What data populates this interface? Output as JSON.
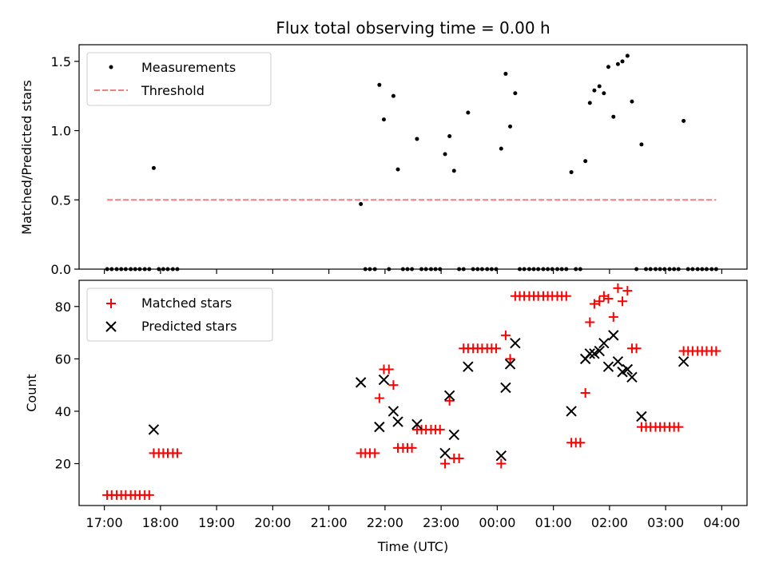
{
  "chart_data": [
    {
      "type": "scatter",
      "panel": "top",
      "title": "Flux total observing time = 0.00 h",
      "xlabel": "",
      "ylabel": "Matched/Predicted stars",
      "ylim": [
        0,
        1.62
      ],
      "yticks": [
        0.0,
        0.5,
        1.0,
        1.5
      ],
      "ytick_labels": [
        "0.0",
        "0.5",
        "1.0",
        "1.5"
      ],
      "legend_position": "top-left",
      "colors": {
        "measurements": "#000000",
        "threshold": "#f08080"
      },
      "series": [
        {
          "name": "Measurements",
          "points": [
            [
              17.05,
              0
            ],
            [
              17.13,
              0
            ],
            [
              17.22,
              0
            ],
            [
              17.3,
              0
            ],
            [
              17.38,
              0
            ],
            [
              17.47,
              0
            ],
            [
              17.55,
              0
            ],
            [
              17.63,
              0
            ],
            [
              17.72,
              0
            ],
            [
              17.8,
              0
            ],
            [
              17.88,
              0.73
            ],
            [
              17.97,
              0
            ],
            [
              18.05,
              0
            ],
            [
              18.13,
              0
            ],
            [
              18.22,
              0
            ],
            [
              18.3,
              0
            ],
            [
              21.57,
              0.47
            ],
            [
              21.65,
              0
            ],
            [
              21.73,
              0
            ],
            [
              21.82,
              0
            ],
            [
              21.9,
              1.33
            ],
            [
              21.98,
              1.08
            ],
            [
              22.07,
              0
            ],
            [
              22.15,
              1.25
            ],
            [
              22.23,
              0.72
            ],
            [
              22.32,
              0
            ],
            [
              22.4,
              0
            ],
            [
              22.48,
              0
            ],
            [
              22.57,
              0.94
            ],
            [
              22.65,
              0
            ],
            [
              22.73,
              0
            ],
            [
              22.82,
              0
            ],
            [
              22.9,
              0
            ],
            [
              22.98,
              0
            ],
            [
              23.07,
              0.83
            ],
            [
              23.15,
              0.96
            ],
            [
              23.23,
              0.71
            ],
            [
              23.32,
              0
            ],
            [
              23.4,
              0
            ],
            [
              23.48,
              1.13
            ],
            [
              23.57,
              0
            ],
            [
              23.65,
              0
            ],
            [
              23.73,
              0
            ],
            [
              23.82,
              0
            ],
            [
              23.9,
              0
            ],
            [
              23.98,
              0
            ],
            [
              24.07,
              0.87
            ],
            [
              24.15,
              1.41
            ],
            [
              24.23,
              1.03
            ],
            [
              24.32,
              1.27
            ],
            [
              24.4,
              0
            ],
            [
              24.48,
              0
            ],
            [
              24.57,
              0
            ],
            [
              24.65,
              0
            ],
            [
              24.73,
              0
            ],
            [
              24.82,
              0
            ],
            [
              24.9,
              0
            ],
            [
              24.98,
              0
            ],
            [
              25.07,
              0
            ],
            [
              25.15,
              0
            ],
            [
              25.23,
              0
            ],
            [
              25.32,
              0.7
            ],
            [
              25.4,
              0
            ],
            [
              25.48,
              0
            ],
            [
              25.57,
              0.78
            ],
            [
              25.65,
              1.2
            ],
            [
              25.73,
              1.29
            ],
            [
              25.82,
              1.32
            ],
            [
              25.9,
              1.27
            ],
            [
              25.98,
              1.46
            ],
            [
              26.07,
              1.1
            ],
            [
              26.15,
              1.48
            ],
            [
              26.23,
              1.5
            ],
            [
              26.32,
              1.54
            ],
            [
              26.4,
              1.21
            ],
            [
              26.48,
              0
            ],
            [
              26.57,
              0.9
            ],
            [
              26.65,
              0
            ],
            [
              26.73,
              0
            ],
            [
              26.82,
              0
            ],
            [
              26.9,
              0
            ],
            [
              26.98,
              0
            ],
            [
              27.07,
              0
            ],
            [
              27.15,
              0
            ],
            [
              27.23,
              0
            ],
            [
              27.32,
              1.07
            ],
            [
              27.4,
              0
            ],
            [
              27.48,
              0
            ],
            [
              27.57,
              0
            ],
            [
              27.65,
              0
            ],
            [
              27.73,
              0
            ],
            [
              27.82,
              0
            ],
            [
              27.9,
              0
            ]
          ]
        },
        {
          "name": "Threshold",
          "style": "dashed",
          "x": [
            17.05,
            27.9
          ],
          "y": [
            0.5,
            0.5
          ]
        }
      ]
    },
    {
      "type": "scatter",
      "panel": "bottom",
      "xlabel": "Time (UTC)",
      "ylabel": "Count",
      "ylim": [
        4,
        90
      ],
      "yticks": [
        20,
        40,
        60,
        80
      ],
      "ytick_labels": [
        "20",
        "40",
        "60",
        "80"
      ],
      "xlim": [
        16.55,
        28.45
      ],
      "xticks": [
        17,
        18,
        19,
        20,
        21,
        22,
        23,
        24,
        25,
        26,
        27,
        28
      ],
      "xtick_labels": [
        "17:00",
        "18:00",
        "19:00",
        "20:00",
        "21:00",
        "22:00",
        "23:00",
        "00:00",
        "01:00",
        "02:00",
        "03:00",
        "04:00"
      ],
      "legend_position": "top-left",
      "colors": {
        "matched": "#ff0000",
        "predicted": "#000000"
      },
      "series": [
        {
          "name": "Matched stars",
          "marker": "plus",
          "points": [
            [
              17.05,
              8
            ],
            [
              17.13,
              8
            ],
            [
              17.22,
              8
            ],
            [
              17.3,
              8
            ],
            [
              17.38,
              8
            ],
            [
              17.47,
              8
            ],
            [
              17.55,
              8
            ],
            [
              17.63,
              8
            ],
            [
              17.72,
              8
            ],
            [
              17.8,
              8
            ],
            [
              17.88,
              24
            ],
            [
              17.97,
              24
            ],
            [
              18.05,
              24
            ],
            [
              18.13,
              24
            ],
            [
              18.22,
              24
            ],
            [
              18.3,
              24
            ],
            [
              21.57,
              24
            ],
            [
              21.65,
              24
            ],
            [
              21.73,
              24
            ],
            [
              21.82,
              24
            ],
            [
              21.9,
              45
            ],
            [
              21.98,
              56
            ],
            [
              22.07,
              56
            ],
            [
              22.15,
              50
            ],
            [
              22.23,
              26
            ],
            [
              22.32,
              26
            ],
            [
              22.4,
              26
            ],
            [
              22.48,
              26
            ],
            [
              22.57,
              33
            ],
            [
              22.65,
              33
            ],
            [
              22.73,
              33
            ],
            [
              22.82,
              33
            ],
            [
              22.9,
              33
            ],
            [
              22.98,
              33
            ],
            [
              23.07,
              20
            ],
            [
              23.15,
              44
            ],
            [
              23.23,
              22
            ],
            [
              23.32,
              22
            ],
            [
              23.4,
              64
            ],
            [
              23.48,
              64
            ],
            [
              23.57,
              64
            ],
            [
              23.65,
              64
            ],
            [
              23.73,
              64
            ],
            [
              23.82,
              64
            ],
            [
              23.9,
              64
            ],
            [
              23.98,
              64
            ],
            [
              24.07,
              20
            ],
            [
              24.15,
              69
            ],
            [
              24.23,
              60
            ],
            [
              24.32,
              84
            ],
            [
              24.4,
              84
            ],
            [
              24.48,
              84
            ],
            [
              24.57,
              84
            ],
            [
              24.65,
              84
            ],
            [
              24.73,
              84
            ],
            [
              24.82,
              84
            ],
            [
              24.9,
              84
            ],
            [
              24.98,
              84
            ],
            [
              25.07,
              84
            ],
            [
              25.15,
              84
            ],
            [
              25.23,
              84
            ],
            [
              25.32,
              28
            ],
            [
              25.4,
              28
            ],
            [
              25.48,
              28
            ],
            [
              25.57,
              47
            ],
            [
              25.65,
              74
            ],
            [
              25.73,
              81
            ],
            [
              25.82,
              82
            ],
            [
              25.9,
              84
            ],
            [
              25.98,
              83
            ],
            [
              26.07,
              76
            ],
            [
              26.15,
              87
            ],
            [
              26.23,
              82
            ],
            [
              26.32,
              86
            ],
            [
              26.4,
              64
            ],
            [
              26.48,
              64
            ],
            [
              26.57,
              34
            ],
            [
              26.65,
              34
            ],
            [
              26.73,
              34
            ],
            [
              26.82,
              34
            ],
            [
              26.9,
              34
            ],
            [
              26.98,
              34
            ],
            [
              27.07,
              34
            ],
            [
              27.15,
              34
            ],
            [
              27.23,
              34
            ],
            [
              27.32,
              63
            ],
            [
              27.4,
              63
            ],
            [
              27.48,
              63
            ],
            [
              27.57,
              63
            ],
            [
              27.65,
              63
            ],
            [
              27.73,
              63
            ],
            [
              27.82,
              63
            ],
            [
              27.9,
              63
            ]
          ]
        },
        {
          "name": "Predicted stars",
          "marker": "x",
          "points": [
            [
              17.88,
              33
            ],
            [
              21.57,
              51
            ],
            [
              21.9,
              34
            ],
            [
              21.98,
              52
            ],
            [
              22.15,
              40
            ],
            [
              22.23,
              36
            ],
            [
              22.57,
              35
            ],
            [
              23.07,
              24
            ],
            [
              23.15,
              46
            ],
            [
              23.23,
              31
            ],
            [
              23.48,
              57
            ],
            [
              24.07,
              23
            ],
            [
              24.15,
              49
            ],
            [
              24.23,
              58
            ],
            [
              24.32,
              66
            ],
            [
              25.32,
              40
            ],
            [
              25.57,
              60
            ],
            [
              25.65,
              62
            ],
            [
              25.73,
              62
            ],
            [
              25.82,
              63
            ],
            [
              25.9,
              66
            ],
            [
              25.98,
              57
            ],
            [
              26.07,
              69
            ],
            [
              26.15,
              59
            ],
            [
              26.23,
              55
            ],
            [
              26.32,
              56
            ],
            [
              26.4,
              53
            ],
            [
              26.57,
              38
            ],
            [
              27.32,
              59
            ]
          ]
        }
      ]
    }
  ]
}
